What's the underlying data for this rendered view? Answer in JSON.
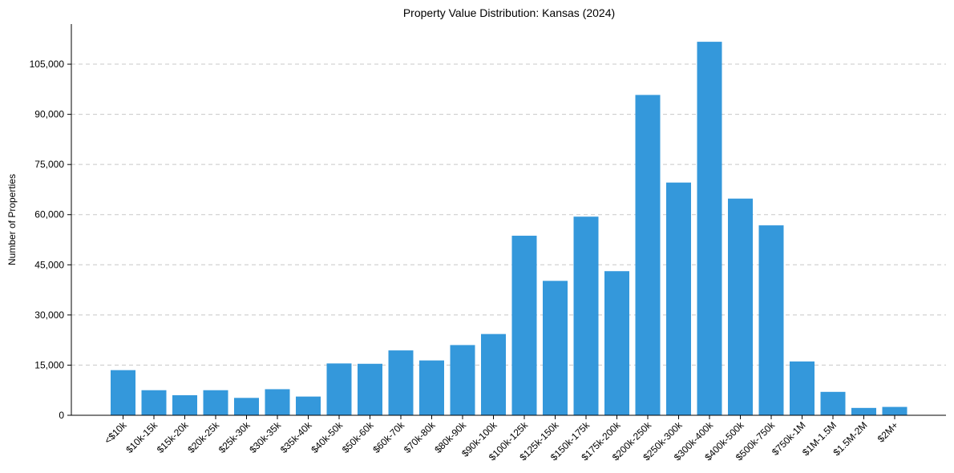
{
  "chart_data": {
    "type": "bar",
    "title": "Property Value Distribution: Kansas (2024)",
    "xlabel": "",
    "ylabel": "Number of Properties",
    "ylim": [
      0,
      117000
    ],
    "yticks": [
      0,
      15000,
      30000,
      45000,
      60000,
      75000,
      90000,
      105000
    ],
    "ytick_labels": [
      "0",
      "15,000",
      "30,000",
      "45,000",
      "60,000",
      "75,000",
      "90,000",
      "105,000"
    ],
    "grid": "y-dashed",
    "color": "#3498db",
    "categories": [
      "<$10k",
      "$10k-15k",
      "$15k-20k",
      "$20k-25k",
      "$25k-30k",
      "$30k-35k",
      "$35k-40k",
      "$40k-50k",
      "$50k-60k",
      "$60k-70k",
      "$70k-80k",
      "$80k-90k",
      "$90k-100k",
      "$100k-125k",
      "$125k-150k",
      "$150k-175k",
      "$175k-200k",
      "$200k-250k",
      "$250k-300k",
      "$300k-400k",
      "$400k-500k",
      "$500k-750k",
      "$750k-1M",
      "$1M-1.5M",
      "$1.5M-2M",
      "$2M+"
    ],
    "values": [
      13500,
      7500,
      6000,
      7500,
      5200,
      7800,
      5600,
      15500,
      15400,
      19400,
      16400,
      21000,
      24300,
      53700,
      40200,
      59400,
      43100,
      95800,
      69600,
      111700,
      64800,
      56800,
      16100,
      7000,
      2200,
      2500
    ]
  }
}
